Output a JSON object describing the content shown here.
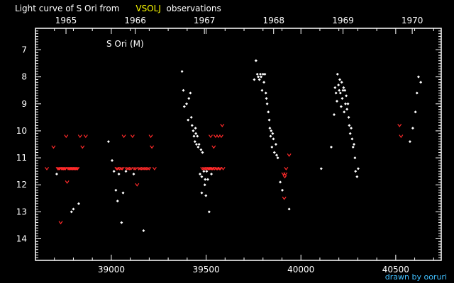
{
  "title_parts": {
    "prefix": "Light curve of S Ori from",
    "source": "VSOLJ",
    "suffix": "observations"
  },
  "credit": "drawn by ooruri",
  "colors": {
    "background": "#000000",
    "axes": "#ffffff",
    "visual_obs": "#ffffff",
    "fainter_than": "#ff2a2a",
    "source_highlight": "#ffff00",
    "credit": "#40c0ff"
  },
  "chart_data": {
    "type": "scatter",
    "star_label": "S Ori (M)",
    "x_ticks": [
      39000,
      39500,
      40000,
      40500
    ],
    "x_minor_step": 100,
    "x_range": [
      38600,
      40740
    ],
    "year_ticks": [
      {
        "label": "1965",
        "jd": 38761
      },
      {
        "label": "1966",
        "jd": 39126
      },
      {
        "label": "1967",
        "jd": 39491
      },
      {
        "label": "1968",
        "jd": 39856
      },
      {
        "label": "1969",
        "jd": 40222
      },
      {
        "label": "1970",
        "jd": 40587
      }
    ],
    "y_ticks": [
      7,
      8,
      9,
      10,
      11,
      12,
      13,
      14
    ],
    "y_minor_step": 0.1,
    "y_range": [
      6.2,
      14.8
    ],
    "y_inverted": true,
    "series": [
      {
        "marker": "dot",
        "points": [
          [
            38712,
            11.6
          ],
          [
            38790,
            13
          ],
          [
            38800,
            12.9
          ],
          [
            38828,
            12.7
          ],
          [
            38985,
            10.4
          ],
          [
            39004,
            11.1
          ],
          [
            39014,
            11.5
          ],
          [
            39024,
            12.2
          ],
          [
            39033,
            12.6
          ],
          [
            39040,
            11.6
          ],
          [
            39054,
            13.4
          ],
          [
            39062,
            12.3
          ],
          [
            39077,
            11.5
          ],
          [
            39118,
            11.6
          ],
          [
            39170,
            13.7
          ],
          [
            39373,
            7.8
          ],
          [
            39380,
            8.5
          ],
          [
            39385,
            9.1
          ],
          [
            39397,
            9
          ],
          [
            39405,
            9.6
          ],
          [
            39409,
            8.8
          ],
          [
            39417,
            8.6
          ],
          [
            39422,
            9.5
          ],
          [
            39426,
            9.8
          ],
          [
            39432,
            10
          ],
          [
            39436,
            10.2
          ],
          [
            39441,
            10.4
          ],
          [
            39444,
            9.9
          ],
          [
            39446,
            10.1
          ],
          [
            39449,
            10.5
          ],
          [
            39454,
            10.2
          ],
          [
            39458,
            10.6
          ],
          [
            39463,
            10.5
          ],
          [
            39468,
            11.6
          ],
          [
            39473,
            10.7
          ],
          [
            39477,
            11.7
          ],
          [
            39477,
            12.3
          ],
          [
            39481,
            10.8
          ],
          [
            39488,
            11.5
          ],
          [
            39493,
            12
          ],
          [
            39495,
            11.8
          ],
          [
            39499,
            12.4
          ],
          [
            39503,
            11.5
          ],
          [
            39509,
            11.8
          ],
          [
            39516,
            13
          ],
          [
            39528,
            11.6
          ],
          [
            39754,
            8.1
          ],
          [
            39763,
            7.4
          ],
          [
            39770,
            7.9
          ],
          [
            39775,
            8.0
          ],
          [
            39781,
            8.1
          ],
          [
            39786,
            7.9
          ],
          [
            39790,
            8.0
          ],
          [
            39795,
            8.5
          ],
          [
            39800,
            7.9
          ],
          [
            39805,
            8.2
          ],
          [
            39810,
            7.9
          ],
          [
            39815,
            8.6
          ],
          [
            39818,
            8.8
          ],
          [
            39822,
            9.0
          ],
          [
            39828,
            9.3
          ],
          [
            39833,
            9.6
          ],
          [
            39836,
            9.9
          ],
          [
            39840,
            10.2
          ],
          [
            39843,
            10.0
          ],
          [
            39847,
            10.6
          ],
          [
            39851,
            10.1
          ],
          [
            39855,
            10.3
          ],
          [
            39860,
            10.8
          ],
          [
            39868,
            10.5
          ],
          [
            39872,
            10.9
          ],
          [
            39878,
            11.0
          ],
          [
            39891,
            11.9
          ],
          [
            39902,
            12.2
          ],
          [
            39938,
            12.9
          ],
          [
            40107,
            11.4
          ],
          [
            40160,
            10.6
          ],
          [
            40175,
            9.4
          ],
          [
            40180,
            8.4
          ],
          [
            40185,
            8.6
          ],
          [
            40190,
            8.9
          ],
          [
            40193,
            7.9
          ],
          [
            40198,
            8.3
          ],
          [
            40202,
            8.5
          ],
          [
            40205,
            8.1
          ],
          [
            40208,
            8.6
          ],
          [
            40212,
            9.1
          ],
          [
            40215,
            8.2
          ],
          [
            40218,
            8.8
          ],
          [
            40222,
            8.5
          ],
          [
            40225,
            8.4
          ],
          [
            40228,
            9.3
          ],
          [
            40232,
            8.5
          ],
          [
            40235,
            9.0
          ],
          [
            40239,
            8.7
          ],
          [
            40243,
            9.2
          ],
          [
            40248,
            9.0
          ],
          [
            40252,
            9.5
          ],
          [
            40255,
            9.8
          ],
          [
            40260,
            10.1
          ],
          [
            40265,
            9.9
          ],
          [
            40270,
            10.3
          ],
          [
            40275,
            10.6
          ],
          [
            40280,
            10.5
          ],
          [
            40285,
            11.0
          ],
          [
            40288,
            11.5
          ],
          [
            40296,
            11.7
          ],
          [
            40302,
            11.4
          ],
          [
            40575,
            10.4
          ],
          [
            40590,
            9.9
          ],
          [
            40604,
            9.3
          ],
          [
            40612,
            8.6
          ],
          [
            40620,
            8.0
          ],
          [
            40632,
            8.2
          ]
        ]
      },
      {
        "marker": "fainter-than",
        "points": [
          [
            38660,
            11.4
          ],
          [
            38695,
            10.6
          ],
          [
            38718,
            11.4
          ],
          [
            38723,
            11.4
          ],
          [
            38728,
            11.4
          ],
          [
            38733,
            13.4
          ],
          [
            38738,
            11.4
          ],
          [
            38743,
            11.4
          ],
          [
            38748,
            11.4
          ],
          [
            38753,
            11.4
          ],
          [
            38758,
            11.4
          ],
          [
            38762,
            10.2
          ],
          [
            38767,
            11.9
          ],
          [
            38772,
            11.4
          ],
          [
            38777,
            11.4
          ],
          [
            38782,
            11.4
          ],
          [
            38787,
            11.4
          ],
          [
            38792,
            11.4
          ],
          [
            38797,
            11.4
          ],
          [
            38802,
            11.4
          ],
          [
            38807,
            11.4
          ],
          [
            38812,
            11.4
          ],
          [
            38817,
            11.4
          ],
          [
            38822,
            11.4
          ],
          [
            38835,
            10.2
          ],
          [
            38848,
            10.6
          ],
          [
            38865,
            10.2
          ],
          [
            39028,
            11.4
          ],
          [
            39033,
            11.4
          ],
          [
            39043,
            11.4
          ],
          [
            39052,
            11.4
          ],
          [
            39058,
            11.4
          ],
          [
            39066,
            10.2
          ],
          [
            39080,
            11.4
          ],
          [
            39088,
            11.4
          ],
          [
            39096,
            11.4
          ],
          [
            39104,
            11.4
          ],
          [
            39112,
            10.2
          ],
          [
            39120,
            11.4
          ],
          [
            39128,
            11.4
          ],
          [
            39136,
            12.0
          ],
          [
            39144,
            11.4
          ],
          [
            39152,
            11.4
          ],
          [
            39160,
            11.4
          ],
          [
            39168,
            11.4
          ],
          [
            39176,
            11.4
          ],
          [
            39184,
            11.4
          ],
          [
            39192,
            11.4
          ],
          [
            39200,
            11.4
          ],
          [
            39208,
            10.2
          ],
          [
            39214,
            10.6
          ],
          [
            39228,
            11.4
          ],
          [
            39480,
            11.4
          ],
          [
            39488,
            11.4
          ],
          [
            39495,
            11.4
          ],
          [
            39502,
            11.4
          ],
          [
            39510,
            11.4
          ],
          [
            39515,
            11.4
          ],
          [
            39520,
            11.4
          ],
          [
            39524,
            10.2
          ],
          [
            39528,
            11.4
          ],
          [
            39532,
            11.4
          ],
          [
            39536,
            11.4
          ],
          [
            39540,
            10.6
          ],
          [
            39545,
            11.4
          ],
          [
            39550,
            10.2
          ],
          [
            39555,
            11.4
          ],
          [
            39560,
            11.4
          ],
          [
            39565,
            10.2
          ],
          [
            39570,
            11.4
          ],
          [
            39575,
            11.4
          ],
          [
            39580,
            10.2
          ],
          [
            39585,
            9.8
          ],
          [
            39590,
            11.4
          ],
          [
            39908,
            11.6
          ],
          [
            39912,
            12.5
          ],
          [
            39915,
            11.7
          ],
          [
            39918,
            11.6
          ],
          [
            39922,
            11.4
          ],
          [
            39938,
            10.9
          ],
          [
            40520,
            9.8
          ],
          [
            40528,
            10.2
          ]
        ]
      }
    ]
  }
}
